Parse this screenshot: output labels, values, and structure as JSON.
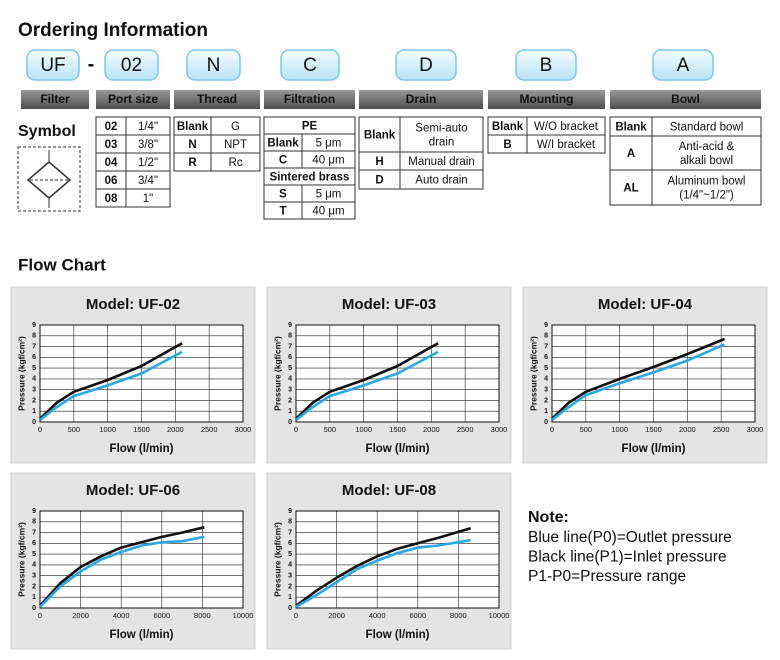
{
  "ordering": {
    "title": "Ordering Information",
    "codes": [
      "UF",
      "02",
      "N",
      "C",
      "D",
      "B",
      "A"
    ],
    "separator": "-",
    "headers": [
      "Filter",
      "Port size",
      "Thread",
      "Filtration",
      "Drain",
      "Mounting",
      "Bowl"
    ],
    "port_size": [
      [
        "02",
        "1/4\""
      ],
      [
        "03",
        "3/8\""
      ],
      [
        "04",
        "1/2\""
      ],
      [
        "06",
        "3/4\""
      ],
      [
        "08",
        "1\""
      ]
    ],
    "thread": [
      [
        "Blank",
        "G"
      ],
      [
        "N",
        "NPT"
      ],
      [
        "R",
        "Rc"
      ]
    ],
    "filtration": [
      {
        "material": "PE",
        "rows": [
          [
            "Blank",
            "5 μm"
          ],
          [
            "C",
            "40 μm"
          ]
        ]
      },
      {
        "material": "Sintered brass",
        "rows": [
          [
            "S",
            "5 μm"
          ],
          [
            "T",
            "40 μm"
          ]
        ]
      }
    ],
    "drain": [
      [
        "Blank",
        [
          "Semi-auto",
          "drain"
        ]
      ],
      [
        "H",
        [
          "Manual drain"
        ]
      ],
      [
        "D",
        [
          "Auto drain"
        ]
      ]
    ],
    "mounting": [
      [
        "Blank",
        [
          "W/O bracket"
        ]
      ],
      [
        "B",
        [
          "W/I bracket"
        ]
      ]
    ],
    "bowl": [
      [
        "Blank",
        [
          "Standard bowl"
        ]
      ],
      [
        "A",
        [
          "Anti-acid &",
          "alkali bowl"
        ]
      ],
      [
        "AL",
        [
          "Aluminum bowl",
          "(1/4\"~1/2\")"
        ]
      ]
    ]
  },
  "symbol": "Symbol",
  "flow_title": "Flow Chart",
  "note": {
    "title": "Note:",
    "lines": [
      "Blue line(P0)=Outlet pressure",
      "Black line(P1)=Inlet pressure",
      "P1-P0=Pressure range"
    ]
  },
  "chart_data": [
    {
      "type": "line",
      "title": "Model: UF-02",
      "x_label": "Flow (l/min)",
      "y_label": "Pressure (kgf/cm²)",
      "x": [
        0,
        250,
        500,
        1000,
        1500,
        2100
      ],
      "xlim": [
        0,
        3000
      ],
      "xticks": [
        0,
        500,
        1000,
        1500,
        2000,
        2500,
        3000
      ],
      "ylim": [
        0,
        9
      ],
      "yticks": [
        0,
        1,
        2,
        3,
        4,
        5,
        6,
        7,
        8,
        9
      ],
      "grid": true,
      "series": [
        {
          "color": "#111111",
          "values": [
            0.3,
            1.8,
            2.8,
            3.9,
            5.2,
            7.3
          ]
        },
        {
          "color": "#29a8e0",
          "values": [
            0.2,
            1.4,
            2.4,
            3.4,
            4.5,
            6.5
          ]
        }
      ]
    },
    {
      "type": "line",
      "title": "Model: UF-03",
      "x_label": "Flow (l/min)",
      "y_label": "Pressure (kgf/cm²)",
      "x": [
        0,
        250,
        500,
        1000,
        1500,
        2100
      ],
      "xlim": [
        0,
        3000
      ],
      "xticks": [
        0,
        500,
        1000,
        1500,
        2000,
        2500,
        3000
      ],
      "ylim": [
        0,
        9
      ],
      "yticks": [
        0,
        1,
        2,
        3,
        4,
        5,
        6,
        7,
        8,
        9
      ],
      "grid": true,
      "series": [
        {
          "color": "#111111",
          "values": [
            0.3,
            1.8,
            2.8,
            3.9,
            5.2,
            7.3
          ]
        },
        {
          "color": "#29a8e0",
          "values": [
            0.2,
            1.4,
            2.4,
            3.4,
            4.5,
            6.5
          ]
        }
      ]
    },
    {
      "type": "line",
      "title": "Model: UF-04",
      "x_label": "Flow (l/min)",
      "y_label": "Pressure (kgf/cm²)",
      "x": [
        0,
        250,
        500,
        1000,
        1500,
        2000,
        2550
      ],
      "xlim": [
        0,
        3000
      ],
      "xticks": [
        0,
        500,
        1000,
        1500,
        2000,
        2500,
        3000
      ],
      "ylim": [
        0,
        9
      ],
      "yticks": [
        0,
        1,
        2,
        3,
        4,
        5,
        6,
        7,
        8,
        9
      ],
      "grid": true,
      "series": [
        {
          "color": "#111111",
          "values": [
            0.3,
            1.8,
            2.8,
            4.0,
            5.1,
            6.3,
            7.7
          ]
        },
        {
          "color": "#29a8e0",
          "values": [
            0.2,
            1.4,
            2.5,
            3.6,
            4.6,
            5.7,
            7.2
          ]
        }
      ]
    },
    {
      "type": "line",
      "title": "Model: UF-06",
      "x_label": "Flow (l/min)",
      "y_label": "Pressure (kgf/cm²)",
      "x": [
        0,
        1000,
        2000,
        3000,
        4000,
        5000,
        6000,
        7000,
        8100
      ],
      "xlim": [
        0,
        10000
      ],
      "xticks": [
        0,
        2000,
        4000,
        6000,
        8000,
        10000
      ],
      "ylim": [
        0,
        9
      ],
      "yticks": [
        0,
        1,
        2,
        3,
        4,
        5,
        6,
        7,
        8,
        9
      ],
      "grid": true,
      "series": [
        {
          "color": "#111111",
          "values": [
            0.2,
            2.3,
            3.8,
            4.8,
            5.6,
            6.1,
            6.6,
            7.0,
            7.5
          ]
        },
        {
          "color": "#29a8e0",
          "values": [
            0.1,
            2.0,
            3.4,
            4.5,
            5.2,
            5.8,
            6.1,
            6.2,
            6.6
          ]
        }
      ]
    },
    {
      "type": "line",
      "title": "Model: UF-08",
      "x_label": "Flow (l/min)",
      "y_label": "Pressure (kgf/cm²)",
      "x": [
        0,
        1000,
        2000,
        3000,
        4000,
        5000,
        6000,
        7000,
        8600
      ],
      "xlim": [
        0,
        10000
      ],
      "xticks": [
        0,
        2000,
        4000,
        6000,
        8000,
        10000
      ],
      "ylim": [
        0,
        9
      ],
      "yticks": [
        0,
        1,
        2,
        3,
        4,
        5,
        6,
        7,
        8,
        9
      ],
      "grid": true,
      "series": [
        {
          "color": "#111111",
          "values": [
            0.2,
            1.6,
            2.8,
            3.9,
            4.8,
            5.5,
            6.0,
            6.5,
            7.4
          ]
        },
        {
          "color": "#29a8e0",
          "values": [
            0.1,
            1.2,
            2.4,
            3.6,
            4.4,
            5.1,
            5.6,
            5.8,
            6.3
          ]
        }
      ]
    }
  ]
}
